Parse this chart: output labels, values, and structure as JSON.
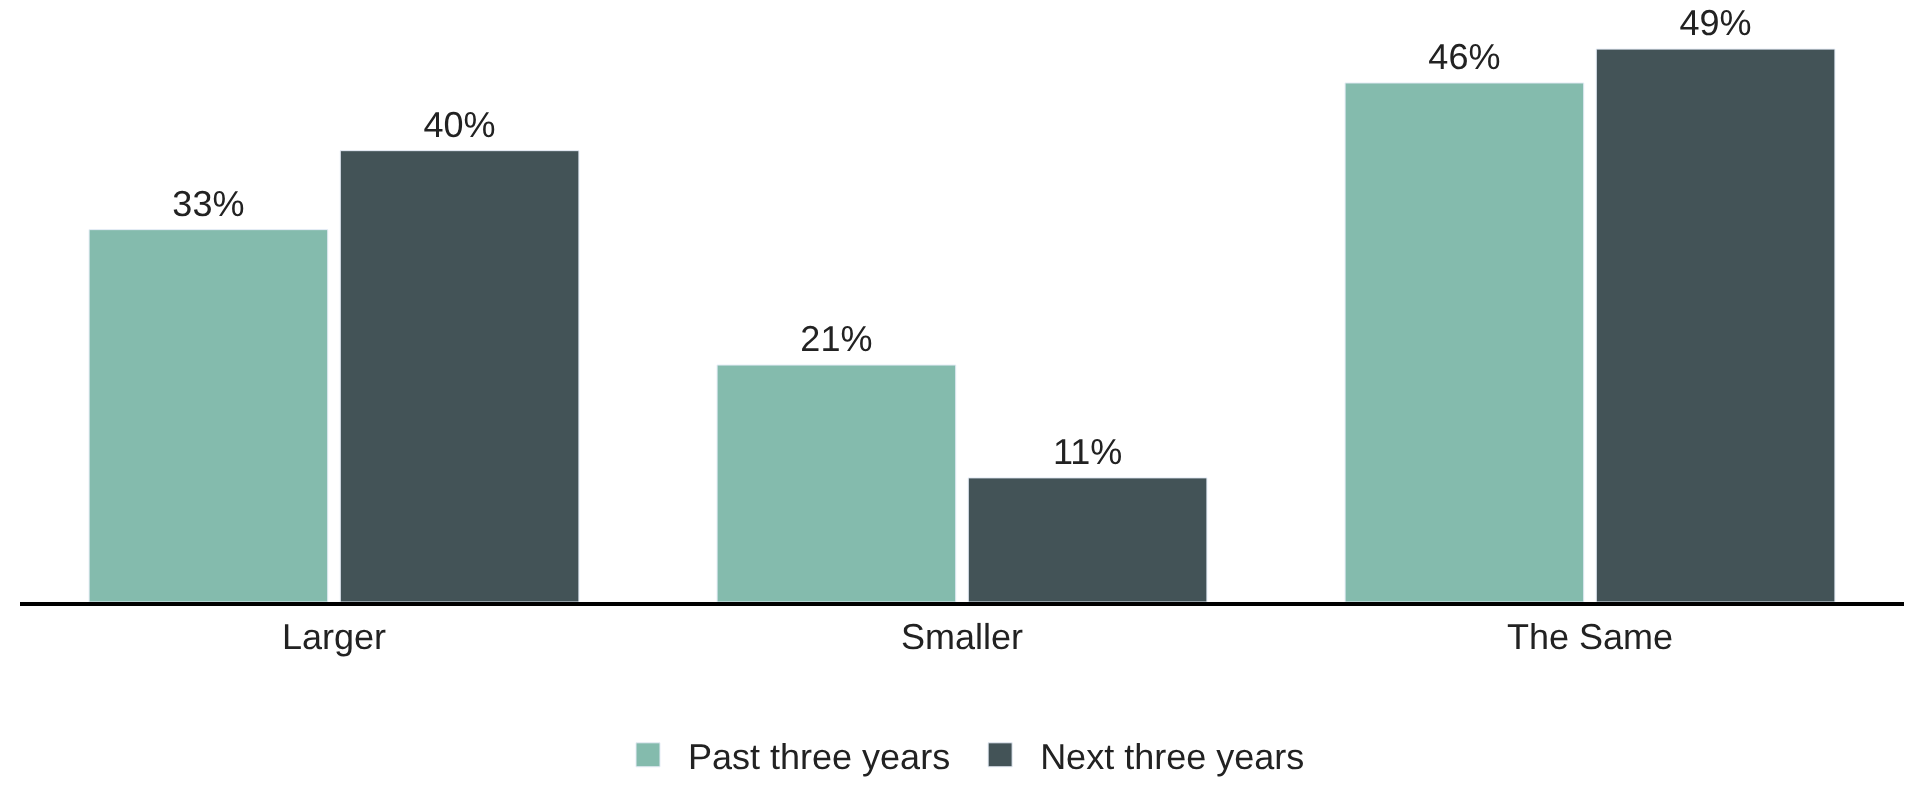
{
  "chart_data": {
    "type": "bar",
    "categories": [
      "Larger",
      "Smaller",
      "The Same"
    ],
    "series": [
      {
        "name": "Past three years",
        "color": "#84bbad",
        "values": [
          33,
          21,
          46
        ],
        "value_labels": [
          "33%",
          "21%",
          "46%"
        ]
      },
      {
        "name": "Next three years",
        "color": "#435357",
        "values": [
          40,
          11,
          49
        ],
        "value_labels": [
          "40%",
          "11%",
          "49%"
        ]
      }
    ],
    "legend": "bottom"
  }
}
